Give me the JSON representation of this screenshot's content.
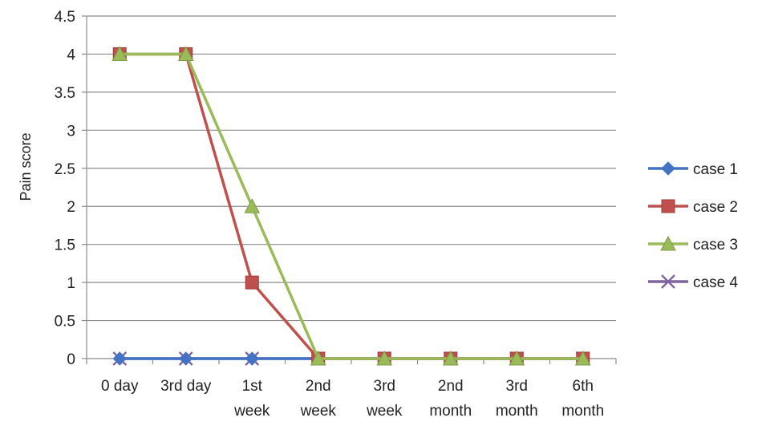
{
  "chart_data": {
    "type": "line",
    "title": "",
    "xlabel": "",
    "ylabel": "Pain score",
    "ylim": [
      0,
      4.5
    ],
    "yticks": [
      "0",
      "0.5",
      "1",
      "1.5",
      "2",
      "2.5",
      "3",
      "3.5",
      "4",
      "4.5"
    ],
    "categories": [
      [
        "0 day"
      ],
      [
        "3rd day"
      ],
      [
        "1st",
        "week"
      ],
      [
        "2nd",
        "week"
      ],
      [
        "3rd",
        "week"
      ],
      [
        "2nd",
        "month"
      ],
      [
        "3rd",
        "month"
      ],
      [
        "6th",
        "month"
      ]
    ],
    "grid": true,
    "legend_position": "right",
    "series": [
      {
        "name": "case 1",
        "color": "#4472c4",
        "marker": "diamond",
        "values": [
          0,
          0,
          0,
          0,
          0,
          0,
          0,
          0
        ]
      },
      {
        "name": "case 2",
        "color": "#c0504d",
        "marker": "square",
        "values": [
          4,
          4,
          1,
          0,
          0,
          0,
          0,
          0
        ]
      },
      {
        "name": "case 3",
        "color": "#9bbb59",
        "marker": "triangle",
        "values": [
          4,
          4,
          2,
          0,
          0,
          0,
          0,
          0
        ]
      },
      {
        "name": "case 4",
        "color": "#8064a2",
        "marker": "x",
        "values": [
          0,
          0,
          0,
          0,
          0,
          0,
          0,
          0
        ]
      }
    ]
  }
}
